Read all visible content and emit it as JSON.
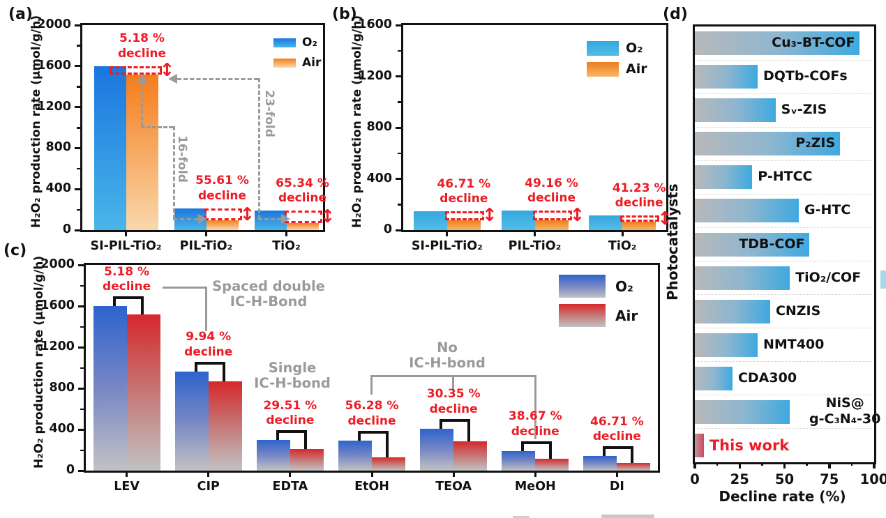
{
  "colors": {
    "decline_red": "#ec1c24",
    "annotation_gray": "#9a9a9a",
    "axis_black": "#111111",
    "a_o2_gradient": [
      "#1a76df",
      "#4ab5e8"
    ],
    "a_air_gradient": [
      "#f57c1c",
      "#f9d8ac"
    ],
    "b_o2_gradient": [
      "#33a7dd",
      "#55bce9"
    ],
    "b_air_gradient": [
      "#ee7d1f",
      "#f8b567"
    ],
    "c_o2_gradient": [
      "#2e63cd",
      "#7787c4",
      "#c2c2c4"
    ],
    "c_air_gradient": [
      "#d6282c",
      "#c57876",
      "#c2c2c4"
    ],
    "d_bar_gradient": [
      "#b7b9bb",
      "#8fb6cf",
      "#3ea9e0"
    ],
    "d_thiswork_gradient": [
      "#c5949c",
      "#c84a5e"
    ]
  },
  "chart_data": [
    {
      "panel": "(a)",
      "type": "bar",
      "ylabel": "H₂O₂ production rate (μmol/g/h)",
      "ylim": [
        0,
        2000
      ],
      "yticks": [
        0,
        400,
        800,
        1200,
        1600,
        2000
      ],
      "categories": [
        "SI-PIL-TiO₂",
        "PIL-TiO₂",
        "TiO₂"
      ],
      "series": [
        {
          "name": "O₂",
          "values": [
            1600,
            211,
            190
          ]
        },
        {
          "name": "Air",
          "values": [
            1517,
            94,
            66
          ]
        }
      ],
      "decline_labels": [
        "5.18 %",
        "55.61 %",
        "65.34 %"
      ],
      "decline_word": "decline",
      "fold_labels": [
        "16-fold",
        "23-fold"
      ],
      "legend_position": "top-right",
      "grid": false
    },
    {
      "panel": "(b)",
      "type": "bar",
      "ylabel": "H₂O₂ production rate (μmol/g/h)",
      "ylim": [
        0,
        1600
      ],
      "yticks": [
        0,
        400,
        800,
        1200,
        1600
      ],
      "categories": [
        "SI-PIL-TiO₂",
        "PIL-TiO₂",
        "TiO₂"
      ],
      "series": [
        {
          "name": "O₂",
          "values": [
            147,
            150,
            112
          ]
        },
        {
          "name": "Air",
          "values": [
            78,
            76,
            66
          ]
        }
      ],
      "decline_labels": [
        "46.71 %",
        "49.16 %",
        "41.23 %"
      ],
      "decline_word": "decline",
      "legend_position": "top-right",
      "grid": false
    },
    {
      "panel": "(c)",
      "type": "bar",
      "ylabel": "H₂O₂ production rate (μmol/g/h)",
      "ylim": [
        0,
        2000
      ],
      "yticks": [
        0,
        400,
        800,
        1200,
        1600,
        2000
      ],
      "categories": [
        "LEV",
        "CIP",
        "EDTA",
        "EtOH",
        "TEOA",
        "MeOH",
        "DI"
      ],
      "series": [
        {
          "name": "O₂",
          "values": [
            1600,
            963,
            298,
            292,
            407,
            190,
            142
          ]
        },
        {
          "name": "Air",
          "values": [
            1517,
            867,
            210,
            128,
            283,
            117,
            76
          ]
        }
      ],
      "decline_labels": [
        "5.18 %",
        "9.94 %",
        "29.51 %",
        "56.28 %",
        "30.35 %",
        "38.67 %",
        "46.71 %"
      ],
      "decline_word": "decline",
      "bond_labels": [
        "Spaced double\nIC-H-Bond",
        "Single\nIC-H-bond",
        "No\nIC-H-bond"
      ],
      "legend_position": "top-right",
      "grid": false
    },
    {
      "panel": "(d)",
      "type": "bar",
      "orientation": "horizontal",
      "xlabel": "Decline rate (%)",
      "ylabel": "Photocatalysts",
      "xlim": [
        0,
        100
      ],
      "xticks": [
        0,
        25,
        50,
        75,
        100
      ],
      "grid": "dotted-row-separators",
      "items": [
        {
          "label": "Cu₃-BT-COF",
          "value": 92,
          "label_position": "inside"
        },
        {
          "label": "DQTb-COFs",
          "value": 35,
          "label_position": "outside"
        },
        {
          "label": "Sᵥ-ZIS",
          "value": 45,
          "label_position": "outside"
        },
        {
          "label": "P₂ZIS",
          "value": 81,
          "label_position": "inside"
        },
        {
          "label": "P-HTCC",
          "value": 32,
          "label_position": "outside"
        },
        {
          "label": "G-HTC",
          "value": 58,
          "label_position": "outside"
        },
        {
          "label": "TDB-COF",
          "value": 64,
          "label_position": "inside"
        },
        {
          "label": "TiO₂/COF",
          "value": 53,
          "label_position": "outside"
        },
        {
          "label": "CNZIS",
          "value": 42,
          "label_position": "outside"
        },
        {
          "label": "NMT400",
          "value": 35,
          "label_position": "outside"
        },
        {
          "label": "CDA300",
          "value": 21,
          "label_position": "outside"
        },
        {
          "label": "NiS@\ng-C₃N₄-30",
          "value": 53,
          "label_position": "outside"
        },
        {
          "label": "This work",
          "value": 5,
          "label_position": "outside",
          "highlight": true
        }
      ]
    }
  ]
}
